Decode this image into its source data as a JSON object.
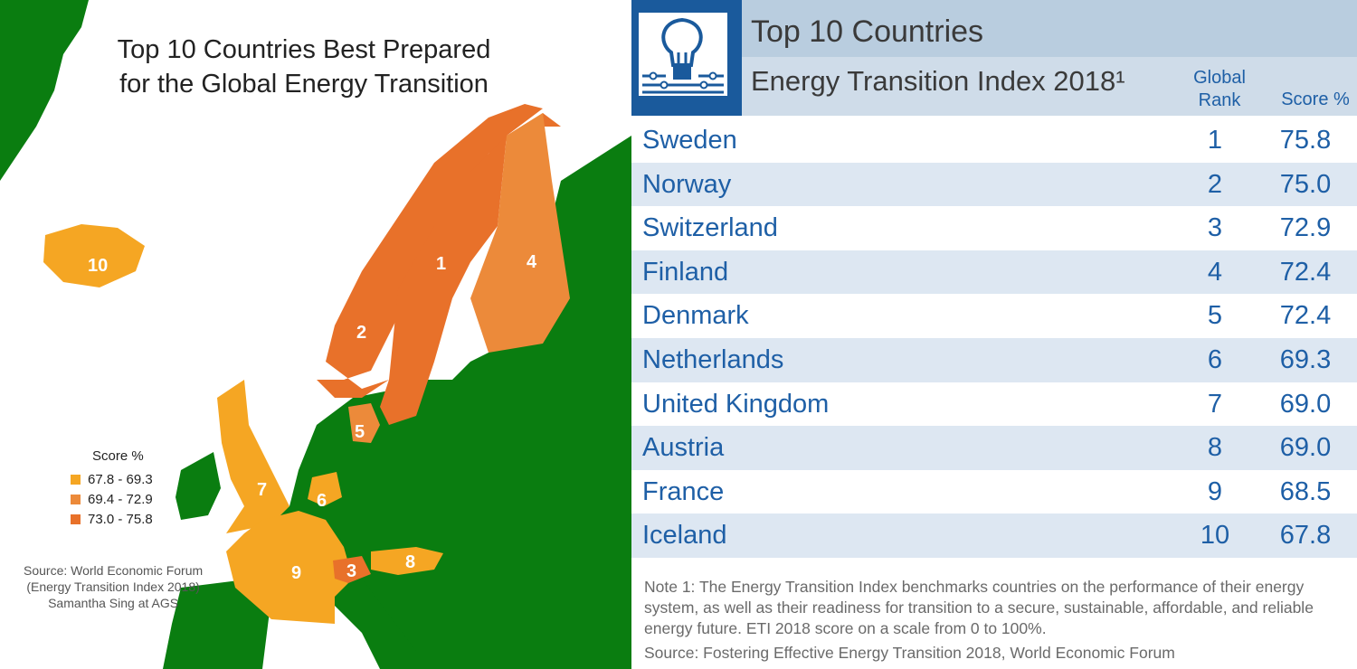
{
  "map": {
    "title_line1": "Top 10 Countries Best Prepared",
    "title_line2": "for the Global Energy Transition",
    "legend": {
      "title": "Score %",
      "items": [
        {
          "label": "67.8 - 69.3",
          "color": "#f5a623"
        },
        {
          "label": "69.4 - 72.9",
          "color": "#ec8a3a"
        },
        {
          "label": "73.0 - 75.8",
          "color": "#e8712a"
        }
      ]
    },
    "source_line1": "Source: World Economic Forum",
    "source_line2": "(Energy Transition Index 2018)",
    "source_line3": "Samantha Sing at AGS",
    "labels": {
      "sweden": "1",
      "norway": "2",
      "switzerland": "3",
      "finland": "4",
      "denmark": "5",
      "netherlands": "6",
      "uk": "7",
      "austria": "8",
      "france": "9",
      "iceland": "10"
    },
    "colors": {
      "land": "#0a7d10",
      "ocean": "#ffffff",
      "top_tier": "#e8712a",
      "mid_tier": "#ec8a3a",
      "low_tier": "#f5a623"
    }
  },
  "table": {
    "title": "Top 10 Countries",
    "subtitle": "Energy Transition Index 2018¹",
    "rank_header_line1": "Global",
    "rank_header_line2": "Rank",
    "score_header": "Score %",
    "icon": "lightbulb-icon",
    "rows": [
      {
        "country": "Sweden",
        "rank": "1",
        "score": "75.8"
      },
      {
        "country": "Norway",
        "rank": "2",
        "score": "75.0"
      },
      {
        "country": "Switzerland",
        "rank": "3",
        "score": "72.9"
      },
      {
        "country": "Finland",
        "rank": "4",
        "score": "72.4"
      },
      {
        "country": "Denmark",
        "rank": "5",
        "score": "72.4"
      },
      {
        "country": "Netherlands",
        "rank": "6",
        "score": "69.3"
      },
      {
        "country": "United Kingdom",
        "rank": "7",
        "score": "69.0"
      },
      {
        "country": "Austria",
        "rank": "8",
        "score": "69.0"
      },
      {
        "country": "France",
        "rank": "9",
        "score": "68.5"
      },
      {
        "country": "Iceland",
        "rank": "10",
        "score": "67.8"
      }
    ],
    "note": "Note 1: The Energy Transition Index benchmarks countries on the performance of their energy system, as well as their readiness for transition to a secure, sustainable, affordable, and reliable energy future. ETI 2018 score on a scale from 0 to 100%.",
    "source": "Source: Fostering Effective Energy Transition 2018, World Economic Forum",
    "colors": {
      "header_dark": "#b9cddf",
      "header_light": "#cfdce9",
      "row_shade": "#dde7f2",
      "text_blue": "#1e5fa6",
      "logo_blue": "#1a5a9c"
    }
  }
}
